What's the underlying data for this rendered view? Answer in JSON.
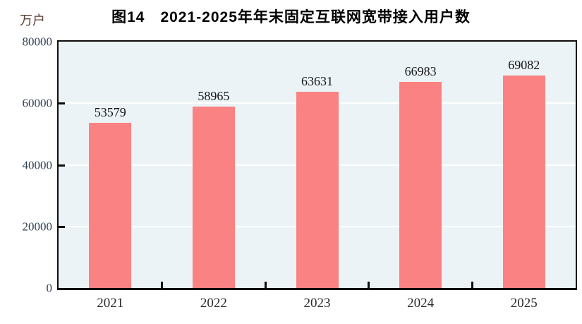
{
  "figure": {
    "title": "图14　2021-2025年年末固定互联网宽带接入用户数",
    "unit_label": "万户"
  },
  "chart_data": {
    "type": "bar",
    "title": "图14　2021-2025年年末固定互联网宽带接入用户数",
    "unit": "万户",
    "categories": [
      "2021",
      "2022",
      "2023",
      "2024",
      "2025"
    ],
    "values": [
      53579,
      58965,
      63631,
      66983,
      69082
    ],
    "value_labels": [
      "53579",
      "58965",
      "63631",
      "66983",
      "69082"
    ],
    "ylim": [
      0,
      80000
    ],
    "yticks": [
      0,
      20000,
      40000,
      60000,
      80000
    ],
    "ytick_labels": [
      "0",
      "20000",
      "40000",
      "60000",
      "80000"
    ],
    "xlabel": "",
    "ylabel": "万户",
    "grid": "horizontal white gridlines at 20000/40000/60000",
    "legend": "none",
    "colors": {
      "bar": "#fb8282",
      "plot_background": "#ebf3f6",
      "gridline": "#ffffff",
      "axis_border": "#0d0d0d",
      "y_tick_text": "#2f4156",
      "x_tick_text": "#2b2b2b",
      "value_label_text": "#141414",
      "unit_text": "#5b3c30",
      "title_text": "#000000"
    }
  }
}
